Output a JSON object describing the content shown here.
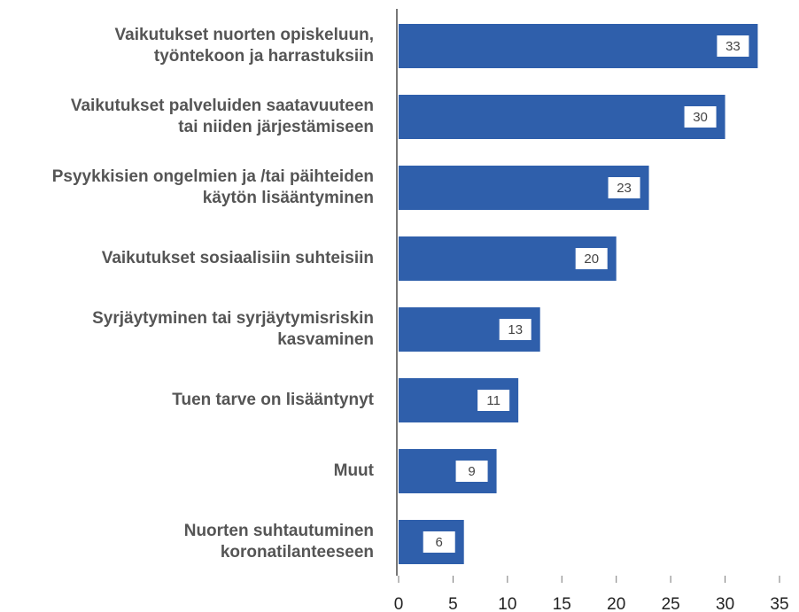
{
  "chart_data": {
    "type": "bar",
    "orientation": "horizontal",
    "categories": [
      [
        "Vaikutukset nuorten opiskeluun,",
        "työntekoon ja harrastuksiin"
      ],
      [
        "Vaikutukset palveluiden saatavuuteen",
        "tai niiden järjestämiseen"
      ],
      [
        "Psyykkisien ongelmien ja /tai päihteiden",
        "käytön lisääntyminen"
      ],
      [
        "Vaikutukset sosiaalisiin suhteisiin"
      ],
      [
        "Syrjäytyminen tai syrjäytymisriskin",
        "kasvaminen"
      ],
      [
        "Tuen tarve on lisääntynyt"
      ],
      [
        "Muut"
      ],
      [
        "Nuorten suhtautuminen",
        "koronatilanteeseen"
      ]
    ],
    "values": [
      33,
      30,
      23,
      20,
      13,
      11,
      9,
      6
    ],
    "color": "#2f5fab",
    "xlim": [
      0,
      35
    ],
    "xticks": [
      0,
      5,
      10,
      15,
      20,
      25,
      30,
      35
    ],
    "grid": false
  }
}
